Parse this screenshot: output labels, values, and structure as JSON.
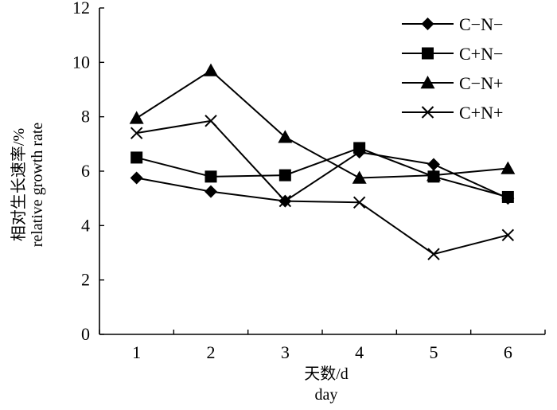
{
  "chart_data": {
    "type": "line",
    "x": [
      1,
      2,
      3,
      4,
      5,
      6
    ],
    "xlim": [
      0.5,
      6.5
    ],
    "ylim": [
      0,
      12
    ],
    "xticks": [
      "1",
      "2",
      "3",
      "4",
      "5",
      "6"
    ],
    "yticks": [
      "0",
      "2",
      "4",
      "6",
      "8",
      "10",
      "12"
    ],
    "xlabel_cn": "天数/d",
    "xlabel_en": "day",
    "ylabel_cn": "相对生长速率/%",
    "ylabel_en": "relative growth rate",
    "grid": false,
    "legend_position": "top-right",
    "series": [
      {
        "name": "C−N−",
        "marker": "diamond",
        "values": [
          5.75,
          5.25,
          4.9,
          6.7,
          6.25,
          5.0
        ]
      },
      {
        "name": "C+N−",
        "marker": "square",
        "values": [
          6.5,
          5.8,
          5.85,
          6.85,
          5.8,
          5.05
        ]
      },
      {
        "name": "C−N+",
        "marker": "triangle",
        "values": [
          7.95,
          9.7,
          7.25,
          5.75,
          5.85,
          6.1
        ]
      },
      {
        "name": "C+N+",
        "marker": "x",
        "values": [
          7.4,
          7.85,
          4.9,
          4.85,
          2.95,
          3.65
        ]
      }
    ]
  }
}
